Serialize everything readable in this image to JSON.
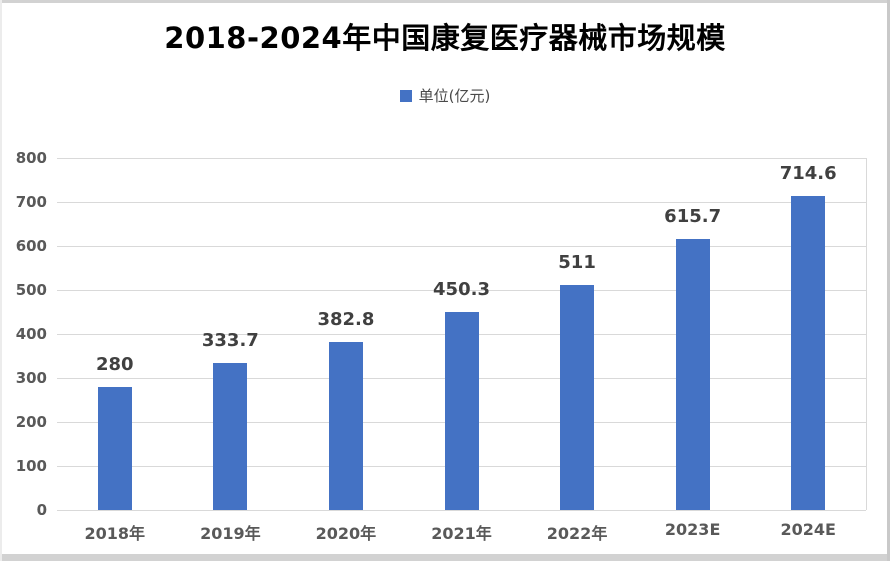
{
  "chart_data": {
    "type": "bar",
    "title": "2018-2024年中国康复医疗器械市场规模",
    "legend": {
      "label": "单位(亿元)",
      "position": "top"
    },
    "categories": [
      "2018年",
      "2019年",
      "2020年",
      "2021年",
      "2022年",
      "2023E",
      "2024E"
    ],
    "values": [
      280,
      333.7,
      382.8,
      450.3,
      511,
      615.7,
      714.6
    ],
    "value_labels": [
      "280",
      "333.7",
      "382.8",
      "450.3",
      "511",
      "615.7",
      "714.6"
    ],
    "xlabel": "",
    "ylabel": "",
    "ylim": [
      0,
      800
    ],
    "ytick_interval": 100,
    "yticks": [
      "0",
      "100",
      "200",
      "300",
      "400",
      "500",
      "600",
      "700",
      "800"
    ],
    "grid": "horizontal",
    "colors": {
      "bar": "#4472C4",
      "gridline": "#D9D9D9",
      "baseline": "#D9D9D9",
      "tick_label": "#595959",
      "value_label": "#404040",
      "title": "#000000",
      "legend_label": "#4a4a4a",
      "frame_border": "#D2D2D2",
      "background": "#FFFFFF"
    }
  }
}
